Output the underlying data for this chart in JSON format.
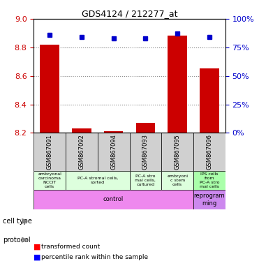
{
  "title": "GDS4124 / 212277_at",
  "samples": [
    "GSM867091",
    "GSM867092",
    "GSM867094",
    "GSM867093",
    "GSM867095",
    "GSM867096"
  ],
  "transformed_count": [
    8.82,
    8.23,
    8.21,
    8.27,
    8.88,
    8.65
  ],
  "percentile_rank": [
    86,
    84,
    83,
    83,
    87,
    84
  ],
  "ylim_left": [
    8.2,
    9.0
  ],
  "ylim_right": [
    0,
    100
  ],
  "yticks_left": [
    8.2,
    8.4,
    8.6,
    8.8,
    9.0
  ],
  "yticks_right": [
    0,
    25,
    50,
    75,
    100
  ],
  "left_color": "#cc0000",
  "right_color": "#0000cc",
  "bar_color": "#cc0000",
  "marker_color": "#0000cc",
  "cell_types": [
    {
      "label": "embryonal\ncarcinoma\nNCCIT\ncells",
      "span": [
        0,
        1
      ],
      "color": "#ddffdd"
    },
    {
      "label": "PC-A stromal cells,\nsorted",
      "span": [
        1,
        3
      ],
      "color": "#ddffdd"
    },
    {
      "label": "PC-A stro\nmal cells,\ncultured",
      "span": [
        3,
        4
      ],
      "color": "#ddffdd"
    },
    {
      "label": "embryoni\nc stem\ncells",
      "span": [
        4,
        5
      ],
      "color": "#ddffdd"
    },
    {
      "label": "IPS cells\nfrom\nPC-A stro\nmal cells",
      "span": [
        5,
        6
      ],
      "color": "#aaffaa"
    }
  ],
  "protocols": [
    {
      "label": "control",
      "span": [
        0,
        5
      ],
      "color": "#ee88ee"
    },
    {
      "label": "reprogram\nming",
      "span": [
        5,
        6
      ],
      "color": "#cc88ee"
    }
  ],
  "bar_bottom": 8.2
}
